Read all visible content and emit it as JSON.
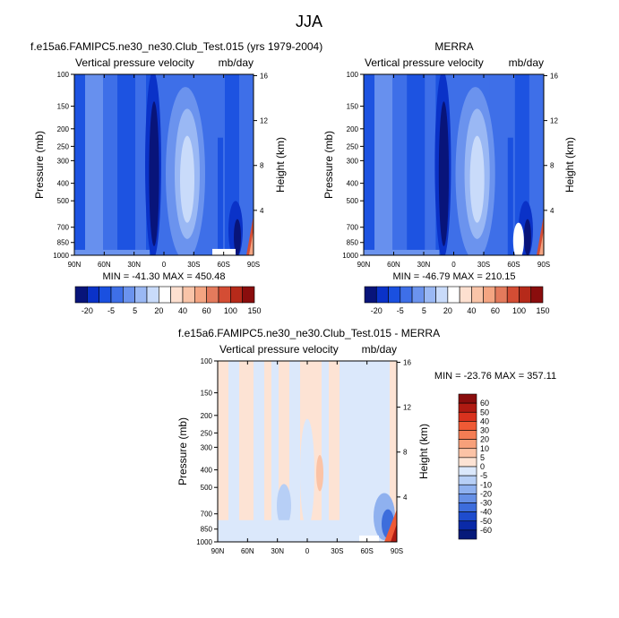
{
  "figure": {
    "main_title": "JJA"
  },
  "chart_data": [
    {
      "type": "heatmap",
      "title": "f.e15a6.FAMIPC5.ne30_ne30.Club_Test.015 (yrs 1979-2004)",
      "left_label": "Vertical pressure velocity",
      "right_label": "mb/day",
      "ylabel": "Pressure (mb)",
      "ylabel_right": "Height (km)",
      "x_ticks": [
        "90N",
        "60N",
        "30N",
        "0",
        "30S",
        "60S",
        "90S"
      ],
      "y_ticks": [
        100,
        150,
        200,
        250,
        300,
        400,
        500,
        700,
        850,
        1000
      ],
      "ylim": [
        1000,
        100
      ],
      "height_ticks": [
        16,
        12,
        8,
        4
      ],
      "stats": "MIN = -41.30  MAX = 450.48",
      "colorbar": {
        "labels": [
          "-20",
          "-5",
          "5",
          "20",
          "40",
          "60",
          "100",
          "150"
        ],
        "colors": [
          "#08147a",
          "#0a32c8",
          "#1a50e0",
          "#3e6fe8",
          "#6b93ee",
          "#9ab8f4",
          "#c9dbfa",
          "#ffffff",
          "#fde0d0",
          "#f9c4a8",
          "#f4a582",
          "#e47a5c",
          "#d44d34",
          "#b62a1a",
          "#8a0d0d"
        ]
      }
    },
    {
      "type": "heatmap",
      "title": "MERRA",
      "left_label": "Vertical pressure velocity",
      "right_label": "mb/day",
      "ylabel": "Pressure (mb)",
      "ylabel_right": "Height (km)",
      "x_ticks": [
        "90N",
        "60N",
        "30N",
        "0",
        "30S",
        "60S",
        "90S"
      ],
      "y_ticks": [
        100,
        150,
        200,
        250,
        300,
        400,
        500,
        700,
        850,
        1000
      ],
      "ylim": [
        1000,
        100
      ],
      "height_ticks": [
        16,
        12,
        8,
        4
      ],
      "stats": "MIN = -46.79  MAX = 210.15",
      "colorbar": {
        "labels": [
          "-20",
          "-5",
          "5",
          "20",
          "40",
          "60",
          "100",
          "150"
        ],
        "colors": [
          "#08147a",
          "#0a32c8",
          "#1a50e0",
          "#3e6fe8",
          "#6b93ee",
          "#9ab8f4",
          "#c9dbfa",
          "#ffffff",
          "#fde0d0",
          "#f9c4a8",
          "#f4a582",
          "#e47a5c",
          "#d44d34",
          "#b62a1a",
          "#8a0d0d"
        ]
      }
    },
    {
      "type": "heatmap",
      "title": "f.e15a6.FAMIPC5.ne30_ne30.Club_Test.015 - MERRA",
      "left_label": "Vertical pressure velocity",
      "right_label": "mb/day",
      "ylabel": "Pressure (mb)",
      "ylabel_right": "Height (km)",
      "x_ticks": [
        "90N",
        "60N",
        "30N",
        "0",
        "30S",
        "60S",
        "90S"
      ],
      "y_ticks": [
        100,
        150,
        200,
        250,
        300,
        400,
        500,
        700,
        850,
        1000
      ],
      "ylim": [
        1000,
        100
      ],
      "height_ticks": [
        16,
        12,
        8,
        4
      ],
      "stats": "MIN = -23.76  MAX = 357.11",
      "colorbar": {
        "labels": [
          "60",
          "50",
          "40",
          "30",
          "20",
          "10",
          "5",
          "0",
          "-5",
          "-10",
          "-20",
          "-30",
          "-40",
          "-50",
          "-60"
        ],
        "colors": [
          "#8a0d0d",
          "#b01a12",
          "#d9321e",
          "#ef5a35",
          "#f47d54",
          "#f7a07a",
          "#fbc3a6",
          "#fde3d4",
          "#dbe8fb",
          "#b7cff6",
          "#8fb1ef",
          "#6690e6",
          "#3d6ddc",
          "#1e4ccd",
          "#0a2aa8",
          "#061a7a"
        ]
      }
    }
  ]
}
